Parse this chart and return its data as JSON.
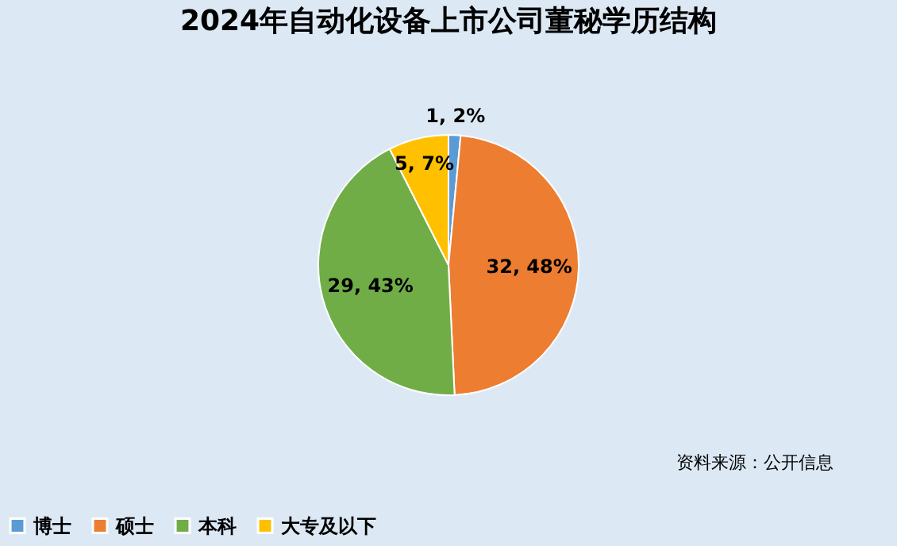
{
  "chart_data": {
    "type": "pie",
    "title": "2024年自动化设备上市公司董秘学历结构",
    "categories": [
      "博士",
      "硕士",
      "本科",
      "大专及以下"
    ],
    "values": [
      1,
      32,
      29,
      5
    ],
    "colors": [
      "#5b9bd5",
      "#ed7d31",
      "#70ad47",
      "#ffc000"
    ],
    "value_labels": [
      "1, 2%",
      "32, 48%",
      "29, 43%",
      "5, 7%"
    ],
    "legend": "bottom",
    "annotations": [
      "资料来源：公开信息"
    ]
  }
}
